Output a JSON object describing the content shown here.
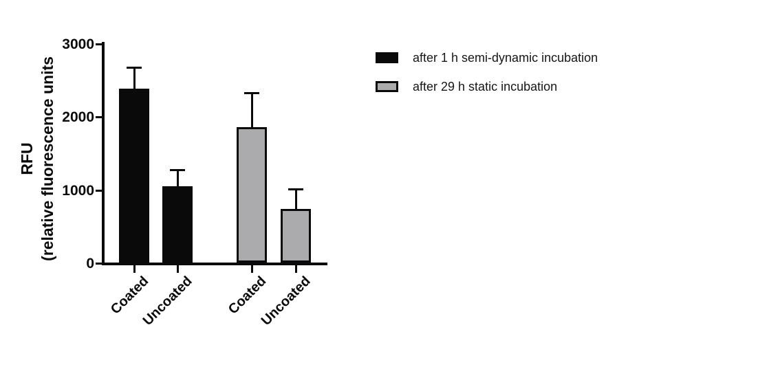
{
  "chart_data": {
    "type": "bar",
    "title": "",
    "ylabel": "RFU (relative fluorescence units",
    "ylabel_lines": [
      "RFU",
      "(relative fluorescence units"
    ],
    "xlabel": "",
    "categories": [
      "Coated",
      "Uncoated",
      "Coated",
      "Uncoated"
    ],
    "series": [
      {
        "name": "after 1 h semi-dynamic incubation",
        "fill": "#0a0a0a",
        "border": "#0a0a0a",
        "values": [
          2380,
          1040
        ],
        "errors_plus": [
          290,
          230
        ]
      },
      {
        "name": "after 29 h static incubation",
        "fill": "#ababad",
        "border": "#0a0a0a",
        "values": [
          1850,
          730
        ],
        "errors_plus": [
          470,
          275
        ]
      }
    ],
    "y_ticks": [
      0,
      1000,
      2000,
      3000
    ],
    "ylim": [
      0,
      3000
    ],
    "grid": false,
    "error_bars": "upper-only",
    "legend_position": "top-right",
    "colors": {
      "axis": "#0a0a0a",
      "text": "#0a0a0a",
      "legend_text": "#161616",
      "background": "#ffffff"
    }
  }
}
